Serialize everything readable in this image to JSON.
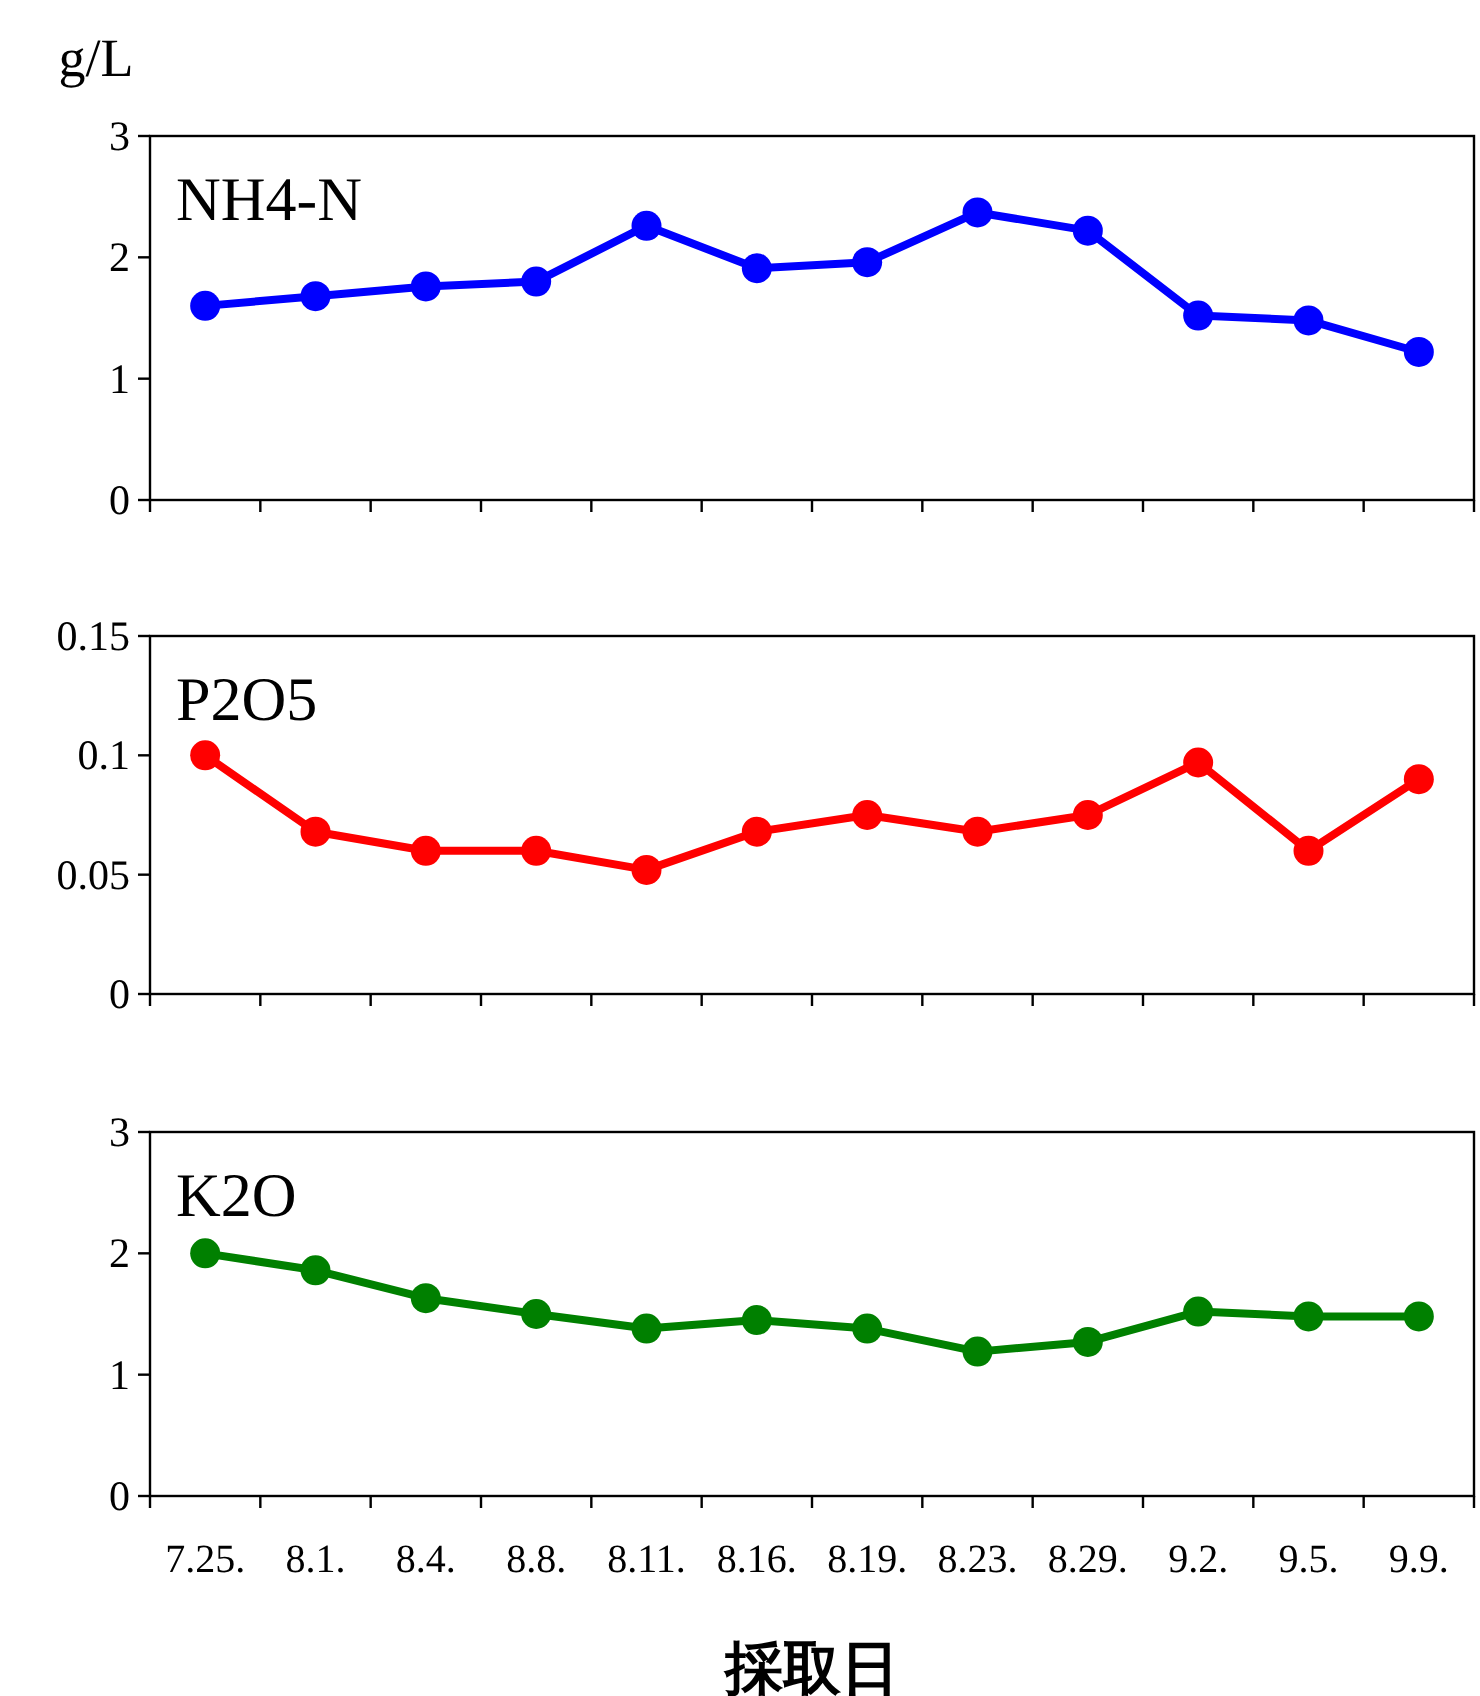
{
  "chart_data": [
    {
      "type": "line",
      "title": "NH4-N",
      "ylabel": "g/L",
      "categories": [
        "7.25.",
        "8.1.",
        "8.4.",
        "8.8.",
        "8.11.",
        "8.16.",
        "8.19.",
        "8.23.",
        "8.29.",
        "9.2.",
        "9.5.",
        "9.9."
      ],
      "series": [
        {
          "color": "#0000ff",
          "values": [
            1.6,
            1.68,
            1.76,
            1.8,
            2.26,
            1.91,
            1.96,
            2.37,
            2.22,
            1.52,
            1.48,
            1.22
          ]
        }
      ],
      "ylim": [
        0,
        3
      ],
      "yticks": [
        0,
        1,
        2,
        3
      ],
      "tick_labels": "y",
      "marker": "circle",
      "line_style": "solid",
      "grid": false
    },
    {
      "type": "line",
      "title": "P2O5",
      "categories": [
        "7.25.",
        "8.1.",
        "8.4.",
        "8.8.",
        "8.11.",
        "8.16.",
        "8.19.",
        "8.23.",
        "8.29.",
        "9.2.",
        "9.5.",
        "9.9."
      ],
      "series": [
        {
          "color": "#ff0000",
          "values": [
            0.1,
            0.068,
            0.06,
            0.06,
            0.052,
            0.068,
            0.075,
            0.068,
            0.075,
            0.097,
            0.06,
            0.09
          ]
        }
      ],
      "ylim": [
        0,
        0.15
      ],
      "yticks": [
        0,
        0.05,
        0.1,
        0.15
      ],
      "tick_labels": "y",
      "marker": "circle",
      "line_style": "solid",
      "grid": false
    },
    {
      "type": "line",
      "title": "K2O",
      "xlabel": "採取日",
      "categories": [
        "7.25.",
        "8.1.",
        "8.4.",
        "8.8.",
        "8.11.",
        "8.16.",
        "8.19.",
        "8.23.",
        "8.29.",
        "9.2.",
        "9.5.",
        "9.9."
      ],
      "series": [
        {
          "color": "#008000",
          "values": [
            2.0,
            1.86,
            1.63,
            1.5,
            1.38,
            1.45,
            1.38,
            1.19,
            1.27,
            1.52,
            1.48,
            1.48
          ]
        }
      ],
      "ylim": [
        0,
        3
      ],
      "yticks": [
        0,
        1,
        2,
        3
      ],
      "marker": "circle",
      "line_style": "solid",
      "grid": false
    }
  ]
}
